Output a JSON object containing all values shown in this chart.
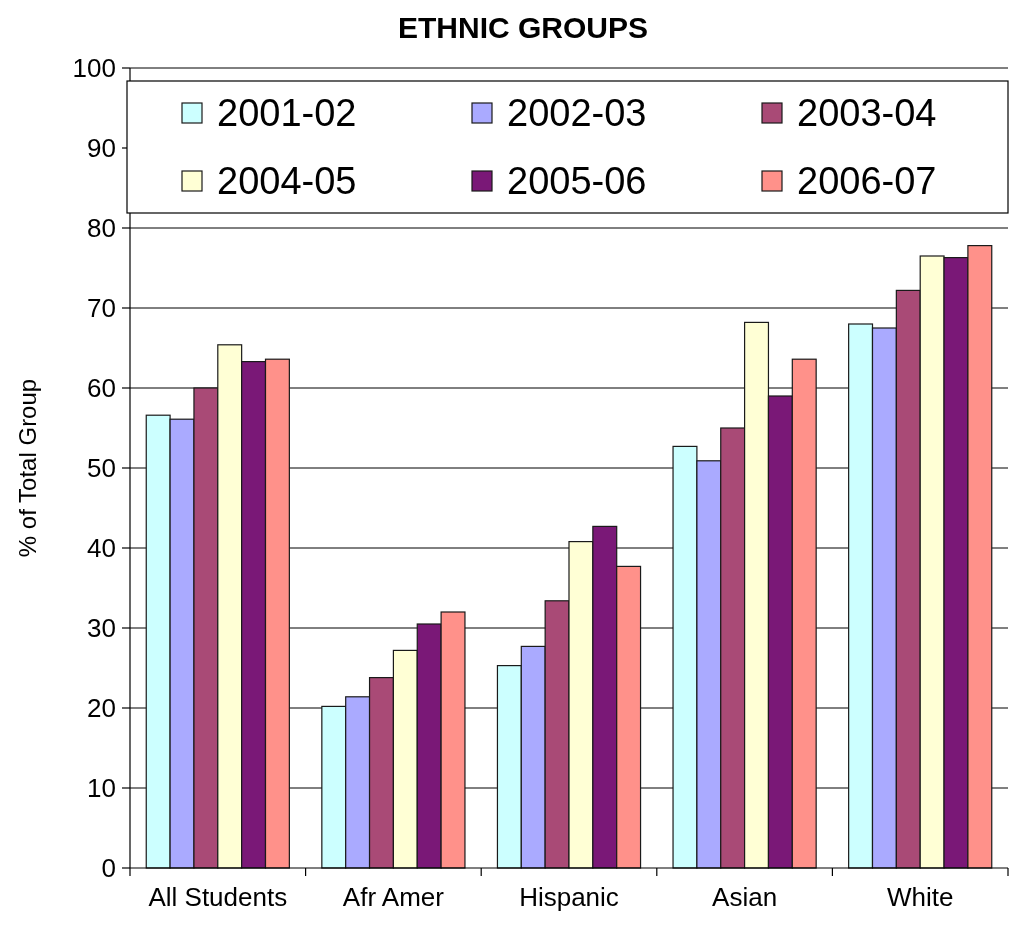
{
  "chart_data": {
    "type": "bar",
    "title": "ETHNIC GROUPS",
    "ylabel": "% of Total Group",
    "categories": [
      "All Students",
      "Afr Amer",
      "Hispanic",
      "Asian",
      "White"
    ],
    "series": [
      {
        "name": "2001-02",
        "color": "#ccffff",
        "values": [
          56.6,
          20.2,
          25.3,
          52.7,
          68.0
        ]
      },
      {
        "name": "2002-03",
        "color": "#aaaaff",
        "values": [
          56.1,
          21.4,
          27.7,
          50.9,
          67.5
        ]
      },
      {
        "name": "2003-04",
        "color": "#a94a76",
        "values": [
          60.0,
          23.8,
          33.4,
          55.0,
          72.2
        ]
      },
      {
        "name": "2004-05",
        "color": "#ffffd5",
        "values": [
          65.4,
          27.2,
          40.8,
          68.2,
          76.5
        ]
      },
      {
        "name": "2005-06",
        "color": "#7a1877",
        "values": [
          63.3,
          30.5,
          42.7,
          59.0,
          76.3
        ]
      },
      {
        "name": "2006-07",
        "color": "#ff918a",
        "values": [
          63.6,
          32.0,
          37.7,
          63.6,
          77.8
        ]
      }
    ],
    "ylim": [
      0,
      100
    ],
    "yticks": [
      0,
      10,
      20,
      30,
      40,
      50,
      60,
      70,
      80,
      90,
      100
    ],
    "grid": "y",
    "legend": "top"
  }
}
